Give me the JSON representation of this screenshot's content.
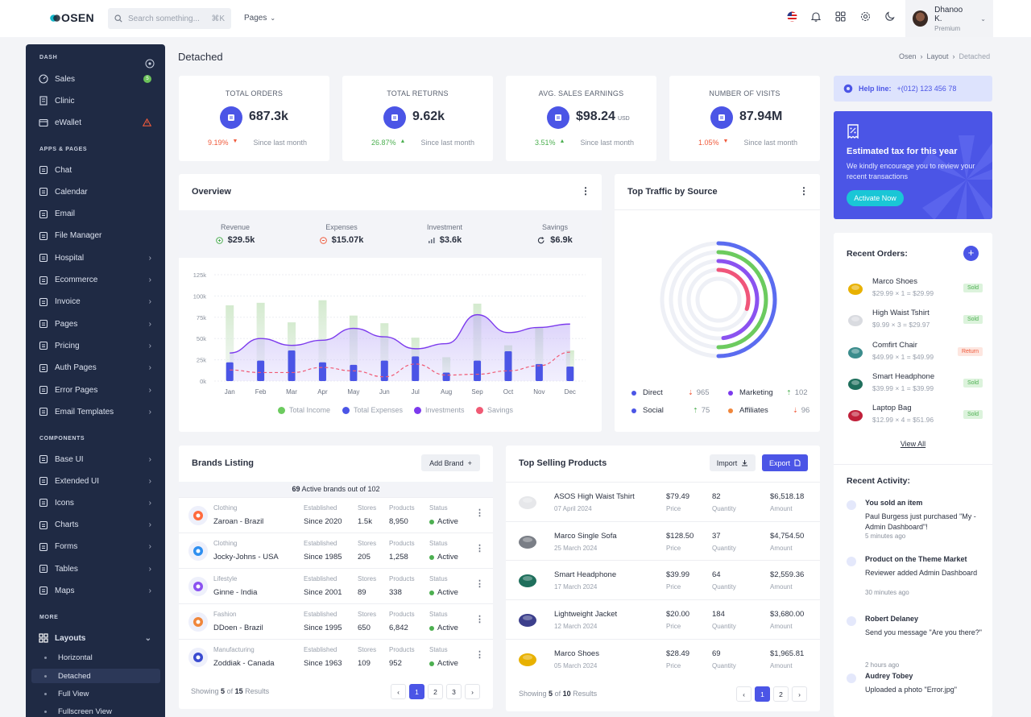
{
  "brand": {
    "logo_text": "OSEN"
  },
  "search": {
    "placeholder": "Search something...",
    "shortcut": "⌘K"
  },
  "topnav": {
    "pages_label": "Pages"
  },
  "user": {
    "name": "Dhanoo K.",
    "role": "Premium"
  },
  "sidebar": {
    "sections": [
      "DASH",
      "APPS & PAGES",
      "COMPONENTS",
      "MORE"
    ],
    "dash": [
      {
        "label": "Sales",
        "badge": "5"
      },
      {
        "label": "Clinic"
      },
      {
        "label": "eWallet"
      }
    ],
    "apps": [
      "Chat",
      "Calendar",
      "Email",
      "File Manager",
      "Hospital",
      "Ecommerce",
      "Invoice",
      "Pages",
      "Pricing",
      "Auth Pages",
      "Error Pages",
      "Email Templates"
    ],
    "components": [
      "Base UI",
      "Extended UI",
      "Icons",
      "Charts",
      "Forms",
      "Tables",
      "Maps"
    ],
    "more": {
      "layouts": "Layouts",
      "sub": [
        "Horizontal",
        "Detached",
        "Full View",
        "Fullscreen View"
      ]
    }
  },
  "page": {
    "title": "Detached",
    "breadcrumb": [
      "Osen",
      "Layout",
      "Detached"
    ]
  },
  "stats": [
    {
      "label": "TOTAL ORDERS",
      "value": "687.3k",
      "unit": "",
      "change": "9.19%",
      "dir": "down",
      "since": "Since last month"
    },
    {
      "label": "TOTAL RETURNS",
      "value": "9.62k",
      "unit": "",
      "change": "26.87%",
      "dir": "up",
      "since": "Since last month"
    },
    {
      "label": "AVG. SALES EARNINGS",
      "value": "$98.24",
      "unit": "USD",
      "change": "3.51%",
      "dir": "up",
      "since": "Since last month"
    },
    {
      "label": "NUMBER OF VISITS",
      "value": "87.94M",
      "unit": "",
      "change": "1.05%",
      "dir": "down",
      "since": "Since last month"
    }
  ],
  "overview": {
    "title": "Overview",
    "summary": [
      {
        "label": "Revenue",
        "value": "$29.5k"
      },
      {
        "label": "Expenses",
        "value": "$15.07k"
      },
      {
        "label": "Investment",
        "value": "$3.6k"
      },
      {
        "label": "Savings",
        "value": "$6.9k"
      }
    ],
    "legend": [
      "Total Income",
      "Total Expenses",
      "Investments",
      "Savings"
    ]
  },
  "chart_data": {
    "type": "bar",
    "categories": [
      "Jan",
      "Feb",
      "Mar",
      "Apr",
      "May",
      "Jun",
      "Jul",
      "Aug",
      "Sep",
      "Oct",
      "Nov",
      "Dec"
    ],
    "ylim": [
      0,
      125000
    ],
    "yticks": [
      "0k",
      "25k",
      "50k",
      "75k",
      "100k",
      "125k"
    ],
    "series": [
      {
        "name": "Total Income",
        "type": "bar",
        "values": [
          89000,
          92000,
          69000,
          95000,
          77000,
          68000,
          51000,
          28000,
          91000,
          42000,
          63000,
          36000
        ],
        "color": "#cde7c9"
      },
      {
        "name": "Total Expenses",
        "type": "bar",
        "values": [
          22000,
          24000,
          36000,
          22000,
          19000,
          24000,
          29000,
          10000,
          24000,
          35000,
          20000,
          17000
        ],
        "color": "#4b55e6"
      },
      {
        "name": "Investments",
        "type": "area",
        "values": [
          33000,
          50000,
          42000,
          48000,
          62000,
          52000,
          38000,
          44000,
          78000,
          57000,
          63000,
          67000
        ],
        "color": "#7c3aed"
      },
      {
        "name": "Savings",
        "type": "line",
        "values": [
          13000,
          10000,
          10000,
          16000,
          12000,
          5000,
          20000,
          7000,
          8000,
          12000,
          18000,
          34000
        ],
        "color": "#f05a74"
      }
    ]
  },
  "traffic": {
    "title": "Top Traffic by Source",
    "items": [
      {
        "name": "Direct",
        "value": "965",
        "trend": "down",
        "color": "#4b55e6"
      },
      {
        "name": "Marketing",
        "value": "102",
        "trend": "up",
        "color": "#7c3aed"
      },
      {
        "name": "Social",
        "value": "75",
        "trend": "up",
        "color": "#4b55e6"
      },
      {
        "name": "Affiliates",
        "value": "96",
        "trend": "down",
        "color": "#f0863b"
      }
    ],
    "rings": [
      {
        "fraction": 0.5,
        "color": "#5b6cf0"
      },
      {
        "fraction": 0.5,
        "color": "#6ccb5f"
      },
      {
        "fraction": 0.48,
        "color": "#8b52f0"
      },
      {
        "fraction": 0.3,
        "color": "#f0567a"
      }
    ]
  },
  "help": {
    "label": "Help line:",
    "phone": "+(012) 123 456 78"
  },
  "tax": {
    "title": "Estimated tax for this year",
    "text": "We kindly encourage you to review your recent transactions",
    "button": "Activate Now"
  },
  "recent_orders": {
    "title": "Recent Orders:",
    "items": [
      {
        "name": "Marco Shoes",
        "price": "$29.99 × 1 = $29.99",
        "status": "Sold"
      },
      {
        "name": "High Waist Tshirt",
        "price": "$9.99 × 3 = $29.97",
        "status": "Sold"
      },
      {
        "name": "Comfirt Chair",
        "price": "$49.99 × 1 = $49.99",
        "status": "Return"
      },
      {
        "name": "Smart Headphone",
        "price": "$39.99 × 1 = $39.99",
        "status": "Sold"
      },
      {
        "name": "Laptop Bag",
        "price": "$12.99 × 4 = $51.96",
        "status": "Sold"
      }
    ],
    "view_all": "View All"
  },
  "recent_activity": {
    "title": "Recent Activity:",
    "items": [
      {
        "head": "You sold an item",
        "body": "Paul Burgess just purchased \"My - Admin Dashboard\"!",
        "time": "5 minutes ago"
      },
      {
        "head": "Product on the Theme Market",
        "body": "Reviewer added Admin Dashboard",
        "time": "30 minutes ago"
      },
      {
        "head": "Robert Delaney",
        "body": "Send you message \"Are you there?\"",
        "time": "2 hours ago"
      },
      {
        "head": "Audrey Tobey",
        "body": "Uploaded a photo \"Error.jpg\"",
        "time": ""
      }
    ]
  },
  "brands": {
    "title": "Brands Listing",
    "add_button": "Add Brand",
    "summary_count": "69",
    "summary_text": "Active brands out of",
    "summary_total": "102",
    "col_labels": {
      "established": "Established",
      "stores": "Stores",
      "products": "Products",
      "status": "Status"
    },
    "rows": [
      {
        "category": "Clothing",
        "name": "Zaroan - Brazil",
        "established": "Since 2020",
        "stores": "1.5k",
        "products": "8,950",
        "status": "Active"
      },
      {
        "category": "Clothing",
        "name": "Jocky-Johns - USA",
        "established": "Since 1985",
        "stores": "205",
        "products": "1,258",
        "status": "Active"
      },
      {
        "category": "Lifestyle",
        "name": "Ginne - India",
        "established": "Since 2001",
        "stores": "89",
        "products": "338",
        "status": "Active"
      },
      {
        "category": "Fashion",
        "name": "DDoen - Brazil",
        "established": "Since 1995",
        "stores": "650",
        "products": "6,842",
        "status": "Active"
      },
      {
        "category": "Manufacturing",
        "name": "Zoddiak - Canada",
        "established": "Since 1963",
        "stores": "109",
        "products": "952",
        "status": "Active"
      }
    ],
    "footer": {
      "prefix": "Showing",
      "shown": "5",
      "mid": "of",
      "total": "15",
      "suffix": "Results"
    },
    "pages": [
      "1",
      "2",
      "3"
    ]
  },
  "products": {
    "title": "Top Selling Products",
    "import": "Import",
    "export": "Export",
    "sub_labels": {
      "price": "Price",
      "qty": "Quantity",
      "amount": "Amount"
    },
    "rows": [
      {
        "name": "ASOS High Waist Tshirt",
        "date": "07 April 2024",
        "price": "$79.49",
        "qty": "82",
        "amount": "$6,518.18"
      },
      {
        "name": "Marco Single Sofa",
        "date": "25 March 2024",
        "price": "$128.50",
        "qty": "37",
        "amount": "$4,754.50"
      },
      {
        "name": "Smart Headphone",
        "date": "17 March 2024",
        "price": "$39.99",
        "qty": "64",
        "amount": "$2,559.36"
      },
      {
        "name": "Lightweight Jacket",
        "date": "12 March 2024",
        "price": "$20.00",
        "qty": "184",
        "amount": "$3,680.00"
      },
      {
        "name": "Marco Shoes",
        "date": "05 March 2024",
        "price": "$28.49",
        "qty": "69",
        "amount": "$1,965.81"
      }
    ],
    "footer": {
      "prefix": "Showing",
      "shown": "5",
      "mid": "of",
      "total": "10",
      "suffix": "Results"
    },
    "pages": [
      "1",
      "2"
    ]
  }
}
